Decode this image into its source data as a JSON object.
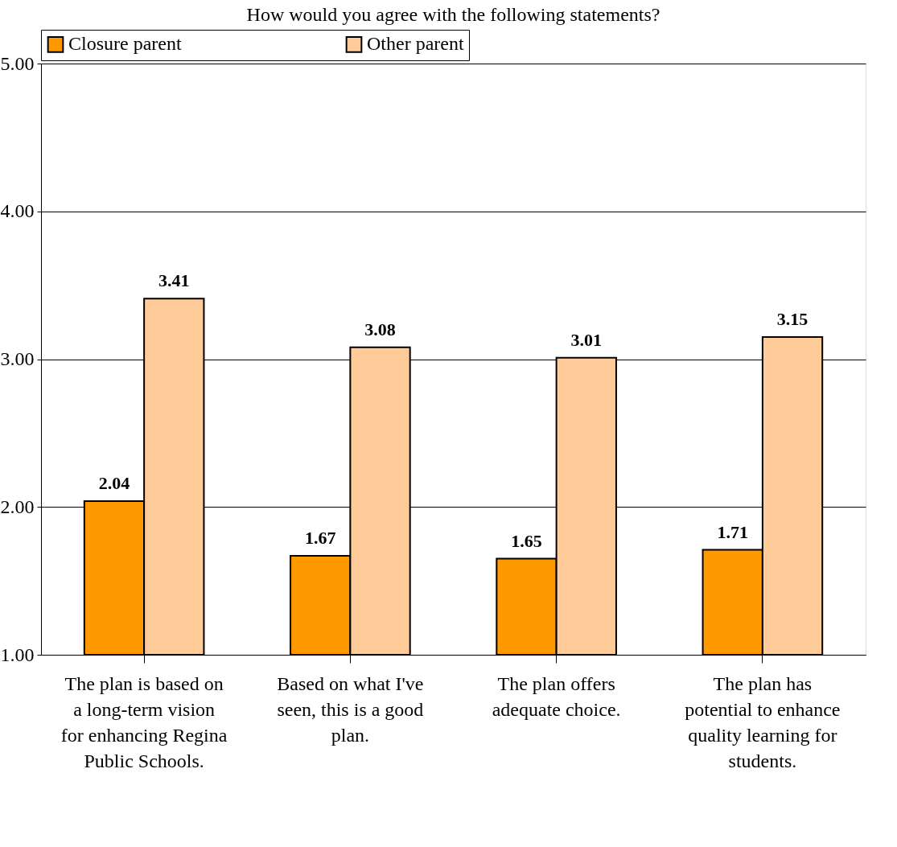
{
  "chart_data": {
    "type": "bar",
    "title": "How would you agree with the following statements?",
    "categories": [
      "The plan is based on a long-term vision for enhancing Regina Public Schools.",
      "Based on what I've seen, this is a good plan.",
      "The plan offers adequate choice.",
      "The plan has potential to enhance quality learning for students."
    ],
    "series": [
      {
        "name": "Closure parent",
        "color": "#ff9900",
        "values": [
          2.04,
          1.67,
          1.65,
          1.71
        ]
      },
      {
        "name": "Other parent",
        "color": "#ffcc99",
        "values": [
          3.41,
          3.08,
          3.01,
          3.15
        ]
      }
    ],
    "ylim": [
      1,
      5
    ],
    "yticks": [
      {
        "value": 1,
        "label": "1.00"
      },
      {
        "value": 2,
        "label": "2.00"
      },
      {
        "value": 3,
        "label": "3.00"
      },
      {
        "value": 4,
        "label": "4.00"
      },
      {
        "value": 5,
        "label": "5.00"
      }
    ],
    "grid": "y",
    "legend": "top",
    "data_labels": true
  }
}
